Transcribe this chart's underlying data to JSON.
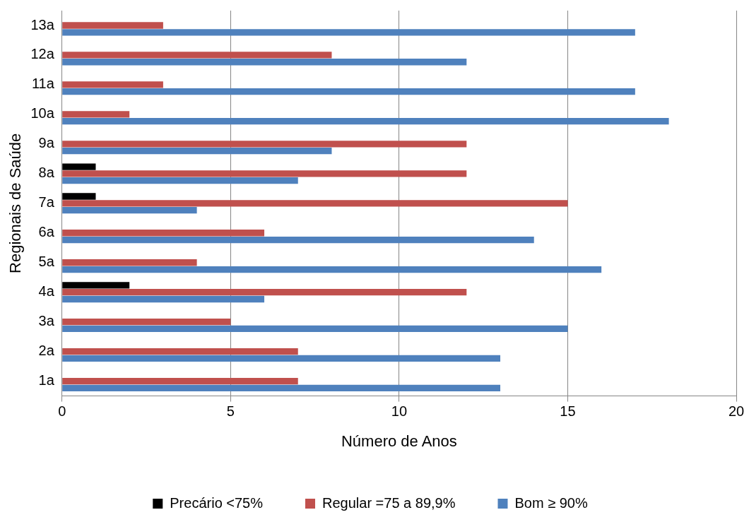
{
  "chart_data": {
    "type": "bar",
    "orientation": "horizontal",
    "xlabel": "Número de Anos",
    "ylabel": "Regionais de Saúde",
    "categories": [
      "13a",
      "12a",
      "11a",
      "10a",
      "9a",
      "8a",
      "7a",
      "6a",
      "5a",
      "4a",
      "3a",
      "2a",
      "1a"
    ],
    "series": [
      {
        "name": "Precário <75%",
        "color": "#000000",
        "values": [
          null,
          null,
          null,
          null,
          null,
          1,
          1,
          null,
          null,
          2,
          null,
          null,
          null
        ]
      },
      {
        "name": "Regular =75 a 89,9%",
        "color": "#c0504d",
        "values": [
          3,
          8,
          3,
          2,
          12,
          12,
          15,
          6,
          4,
          12,
          5,
          7,
          7
        ]
      },
      {
        "name": "Bom ≥ 90%",
        "color": "#4f81bd",
        "values": [
          17,
          12,
          17,
          18,
          8,
          7,
          4,
          14,
          16,
          6,
          15,
          13,
          13
        ]
      }
    ],
    "xlim": [
      0,
      20
    ],
    "xticks": [
      0,
      5,
      10,
      15,
      20
    ],
    "grid": "x",
    "legend": "bottom"
  }
}
